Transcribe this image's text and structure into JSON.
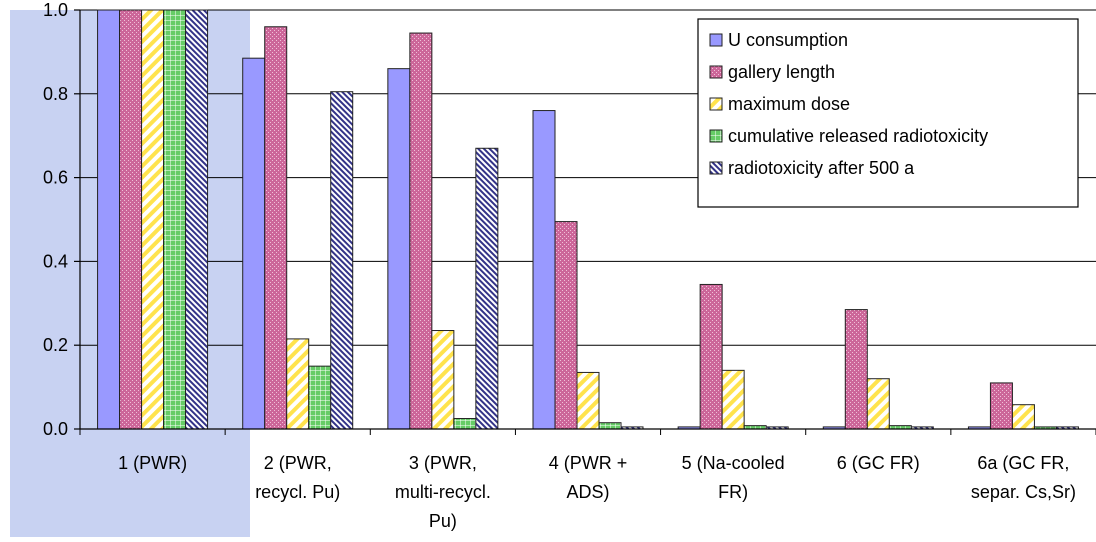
{
  "chart_data": {
    "type": "bar",
    "title": "",
    "xlabel": "",
    "ylabel": "",
    "ylim": [
      0,
      1.0
    ],
    "yticks": [
      "0.0",
      "0.2",
      "0.4",
      "0.6",
      "0.8",
      "1.0"
    ],
    "grid": true,
    "legend_position": "top-right",
    "categories": [
      [
        "1 (PWR)"
      ],
      [
        "2  (PWR,",
        "recycl. Pu)"
      ],
      [
        "3  (PWR,",
        "multi-recycl.",
        "Pu)"
      ],
      [
        "4  (PWR +",
        "ADS)"
      ],
      [
        "5 (Na-cooled",
        "FR)"
      ],
      [
        "6  (GC FR)"
      ],
      [
        "6a  (GC FR,",
        "separ. Cs,Sr)"
      ]
    ],
    "series": [
      {
        "name": "U consumption",
        "color": "#9999ff",
        "pattern": "solid",
        "values": [
          1.0,
          0.885,
          0.86,
          0.76,
          0.005,
          0.005,
          0.005
        ]
      },
      {
        "name": "gallery length",
        "color": "#cc6699",
        "pattern": "dotted",
        "values": [
          1.0,
          0.96,
          0.945,
          0.495,
          0.345,
          0.285,
          0.11
        ]
      },
      {
        "name": "maximum dose",
        "color": "#ffee66",
        "pattern": "diagonal-stripes",
        "values": [
          1.0,
          0.215,
          0.235,
          0.135,
          0.14,
          0.12,
          0.058
        ]
      },
      {
        "name": "cumulative released radiotoxicity",
        "color": "#66cc66",
        "pattern": "grid",
        "values": [
          1.0,
          0.15,
          0.025,
          0.015,
          0.008,
          0.008,
          0.005
        ]
      },
      {
        "name": "radiotoxicity after 500 a",
        "color": "#333388",
        "pattern": "hatched",
        "values": [
          1.0,
          0.805,
          0.67,
          0.005,
          0.005,
          0.005,
          0.005
        ]
      }
    ],
    "highlight_color": "#c8d2f2"
  }
}
